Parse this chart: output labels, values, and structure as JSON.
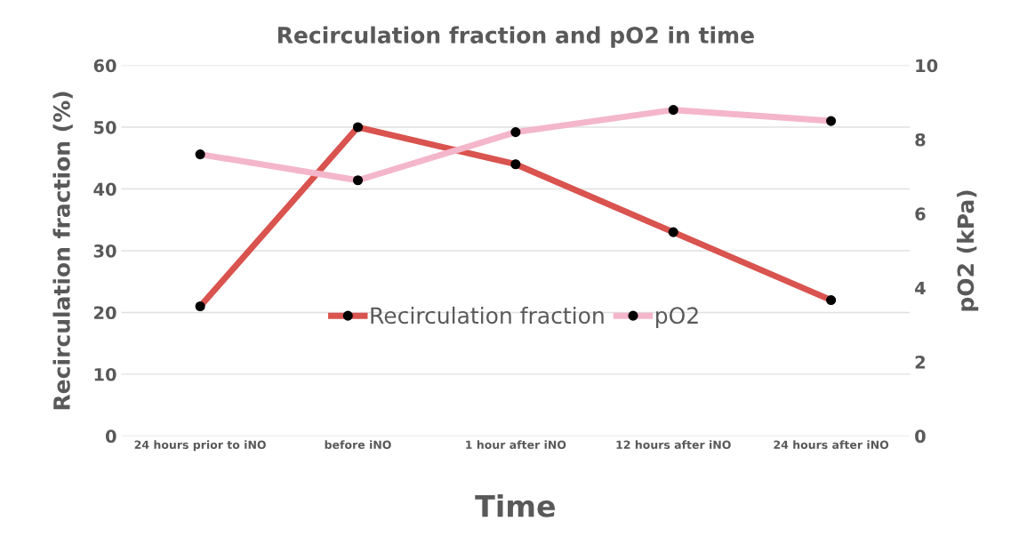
{
  "chart_data": {
    "type": "line",
    "title": "Recirculation fraction and pO2 in time",
    "xlabel": "Time",
    "ylabel": "Recirculation fraction (%)",
    "y2label": "pO2 (kPa)",
    "categories": [
      "24 hours prior to iNO",
      "before iNO",
      "1 hour after iNO",
      "12 hours after iNO",
      "24 hours after iNO"
    ],
    "series": [
      {
        "name": "Recirculation fraction",
        "color": "#d9534f",
        "values": [
          21,
          50,
          44,
          33,
          22
        ]
      },
      {
        "name": "pO2",
        "color": "#f4b6ca",
        "axis": "y2",
        "values": [
          7.6,
          6.9,
          8.2,
          8.8,
          8.5
        ]
      }
    ],
    "ylim": [
      0,
      60
    ],
    "yticks": [
      0,
      10,
      20,
      30,
      40,
      50,
      60
    ],
    "y2lim": [
      0,
      10
    ],
    "y2ticks": [
      0,
      2,
      4,
      6,
      8,
      10
    ],
    "grid": "y",
    "legend": "center",
    "marker": "circle",
    "line_style": "solid"
  }
}
